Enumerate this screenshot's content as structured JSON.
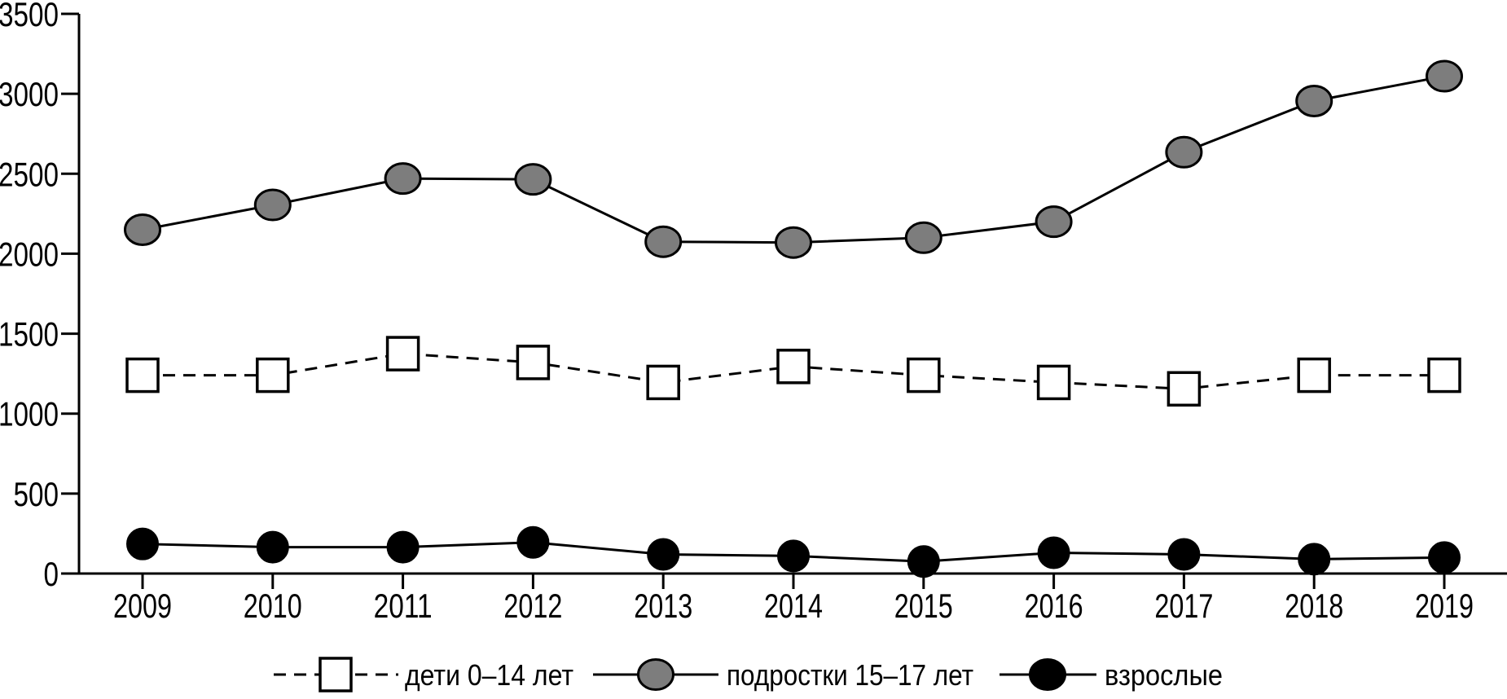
{
  "chart_data": {
    "type": "line",
    "title": "",
    "xlabel": "",
    "ylabel": "",
    "x_categories": [
      "2009",
      "2010",
      "2011",
      "2012",
      "2013",
      "2014",
      "2015",
      "2016",
      "2017",
      "2018",
      "2019"
    ],
    "ylim": [
      0,
      3500
    ],
    "yticks": [
      0,
      500,
      1000,
      1500,
      2000,
      2500,
      3000,
      3500
    ],
    "grid": false,
    "legend_position": "bottom-center",
    "series": [
      {
        "name": "дети 0–14 лет",
        "key": "children-0-14",
        "line_style": "dashed",
        "marker": "white-square",
        "line_color": "#000000",
        "marker_fill": "#ffffff",
        "marker_stroke": "#000000",
        "values": [
          1240,
          1240,
          1375,
          1320,
          1195,
          1295,
          1240,
          1195,
          1155,
          1240,
          1240
        ]
      },
      {
        "name": "подростки 15–17 лет",
        "key": "teens-15-17",
        "line_style": "solid",
        "marker": "gray-circle",
        "line_color": "#000000",
        "marker_fill": "#7d7d7d",
        "marker_stroke": "#000000",
        "values": [
          2150,
          2305,
          2470,
          2465,
          2075,
          2070,
          2100,
          2200,
          2635,
          2955,
          3110
        ]
      },
      {
        "name": "взрослые",
        "key": "adults",
        "line_style": "solid",
        "marker": "black-circle",
        "line_color": "#000000",
        "marker_fill": "#000000",
        "marker_stroke": "#000000",
        "values": [
          185,
          165,
          165,
          195,
          120,
          110,
          75,
          130,
          120,
          90,
          100
        ]
      }
    ]
  },
  "colors": {
    "background": "#ffffff",
    "axis": "#000000",
    "text": "#000000",
    "gray_marker": "#7d7d7d"
  }
}
